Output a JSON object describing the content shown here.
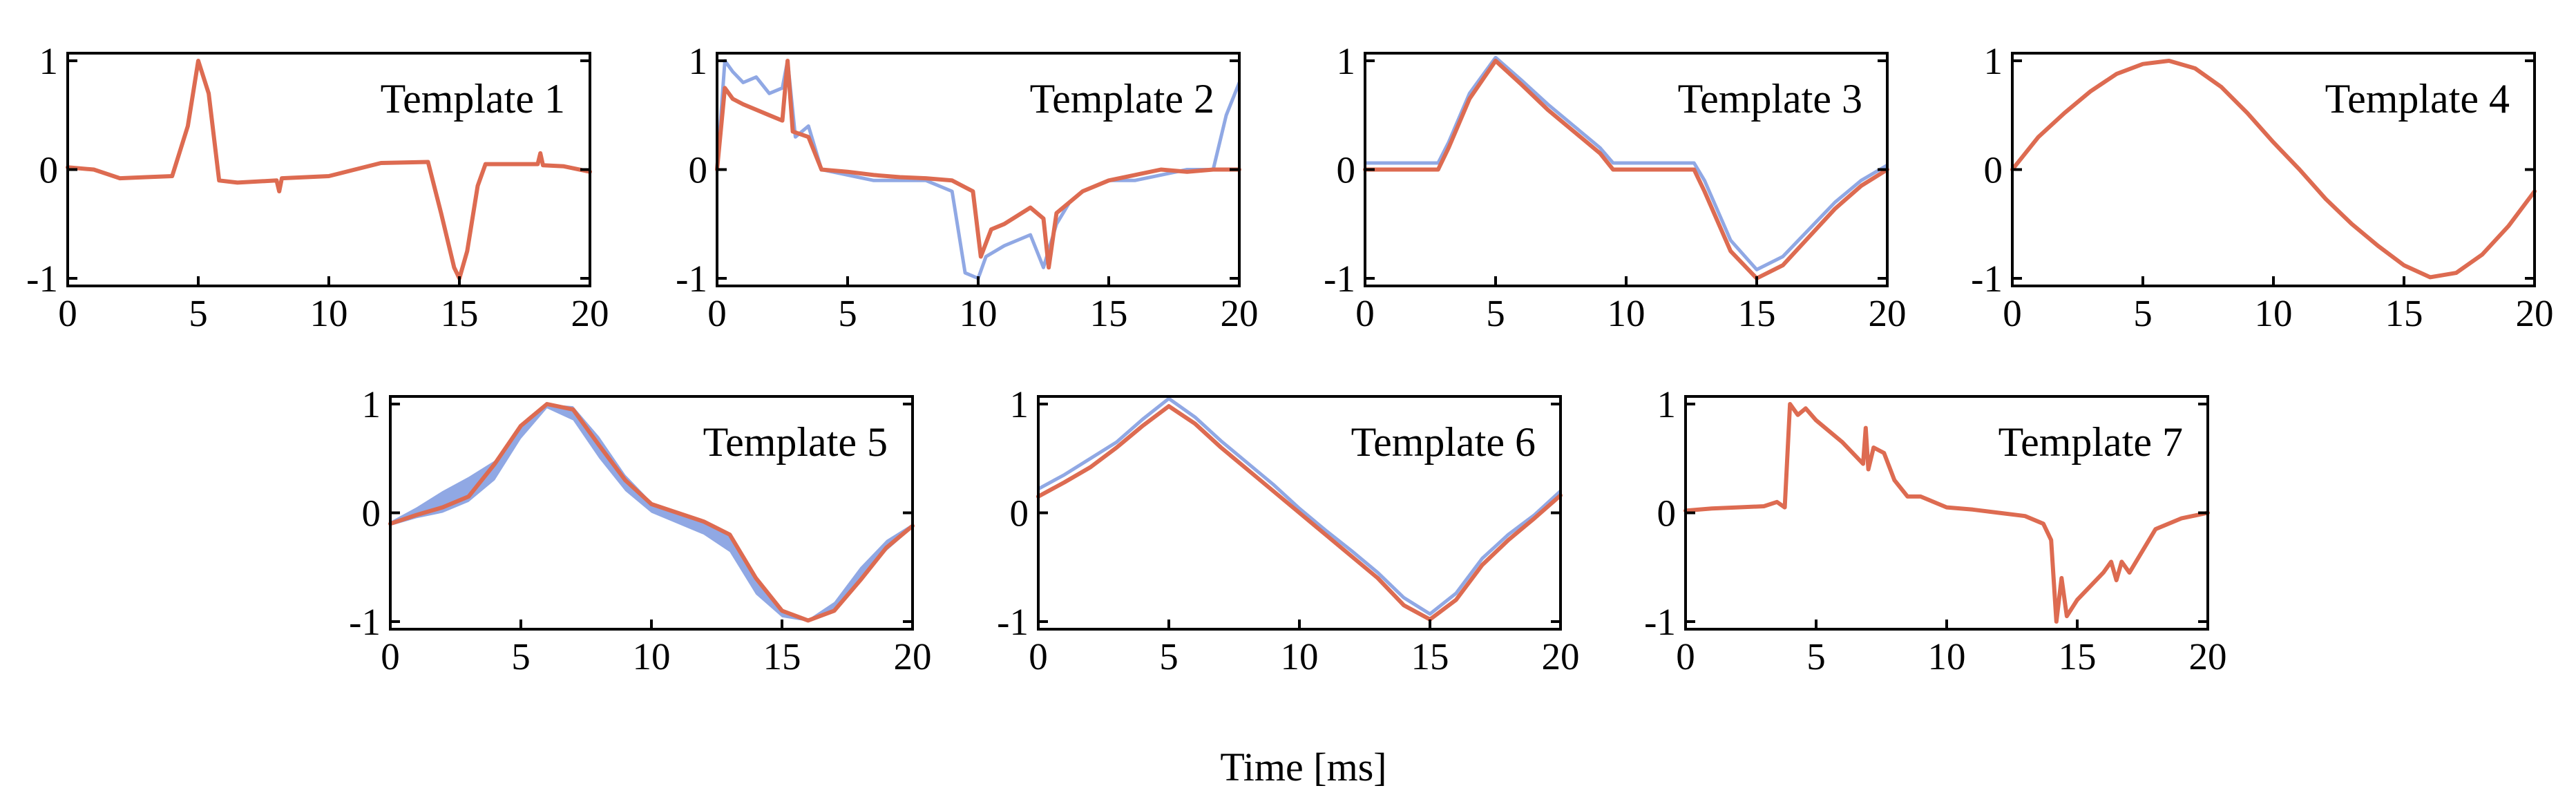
{
  "chart_data": [
    {
      "type": "line",
      "title": "Template 1",
      "xlim": [
        0,
        20
      ],
      "ylim": [
        -1,
        1
      ],
      "xticks": [
        0,
        5,
        10,
        15,
        20
      ],
      "yticks": [
        -1,
        0,
        1
      ],
      "series": [
        {
          "name": "template",
          "color": "#dd6b51",
          "x": [
            0,
            1,
            2,
            3,
            4,
            4.6,
            5.0,
            5.4,
            5.8,
            6.5,
            8,
            8.1,
            8.2,
            10,
            12,
            13.8,
            14.3,
            14.8,
            15.0,
            15.3,
            15.7,
            16,
            17,
            18,
            18.1,
            18.2,
            19,
            20
          ],
          "y": [
            0.02,
            0.0,
            -0.08,
            -0.07,
            -0.06,
            0.4,
            1.0,
            0.7,
            -0.1,
            -0.12,
            -0.1,
            -0.2,
            -0.08,
            -0.06,
            0.06,
            0.07,
            -0.4,
            -0.9,
            -1.0,
            -0.75,
            -0.15,
            0.05,
            0.05,
            0.05,
            0.15,
            0.04,
            0.03,
            -0.02
          ]
        }
      ]
    },
    {
      "type": "line",
      "title": "Template 2",
      "xlim": [
        0,
        20
      ],
      "ylim": [
        -1,
        1
      ],
      "xticks": [
        0,
        5,
        10,
        15,
        20
      ],
      "yticks": [
        -1,
        0,
        1
      ],
      "series": [
        {
          "name": "spread",
          "color": "#90a8e4",
          "x": [
            0,
            0.3,
            0.6,
            1.0,
            1.5,
            2.0,
            2.5,
            2.7,
            3.0,
            3.5,
            4.0,
            5,
            6,
            7,
            8,
            9,
            9.5,
            10.0,
            10.3,
            11,
            12,
            12.5,
            13,
            13.5,
            14,
            15,
            16,
            17,
            18,
            19,
            19.5,
            20
          ],
          "y": [
            0.0,
            1.0,
            0.9,
            0.8,
            0.85,
            0.7,
            0.75,
            1.0,
            0.3,
            0.4,
            0.0,
            -0.05,
            -0.1,
            -0.1,
            -0.1,
            -0.2,
            -0.95,
            -1.0,
            -0.8,
            -0.7,
            -0.6,
            -0.9,
            -0.5,
            -0.3,
            -0.2,
            -0.1,
            -0.1,
            -0.05,
            0.0,
            0.0,
            0.5,
            0.8
          ]
        },
        {
          "name": "template",
          "color": "#dd6b51",
          "x": [
            0,
            0.3,
            0.6,
            1.0,
            1.5,
            2.0,
            2.5,
            2.7,
            2.9,
            3.5,
            4.0,
            5,
            6,
            7,
            8,
            9,
            9.8,
            10.1,
            10.5,
            11,
            12,
            12.5,
            12.7,
            13,
            13.5,
            14,
            15,
            16,
            17,
            18,
            19,
            20
          ],
          "y": [
            0.0,
            0.75,
            0.65,
            0.6,
            0.55,
            0.5,
            0.45,
            1.0,
            0.35,
            0.3,
            0.0,
            -0.02,
            -0.05,
            -0.07,
            -0.08,
            -0.1,
            -0.2,
            -0.8,
            -0.55,
            -0.5,
            -0.35,
            -0.45,
            -0.9,
            -0.4,
            -0.3,
            -0.2,
            -0.1,
            -0.05,
            0.0,
            -0.02,
            0.0,
            0.0
          ]
        }
      ]
    },
    {
      "type": "line",
      "title": "Template 3",
      "xlim": [
        0,
        20
      ],
      "ylim": [
        -1,
        1
      ],
      "xticks": [
        0,
        5,
        10,
        15,
        20
      ],
      "yticks": [
        -1,
        0,
        1
      ],
      "series": [
        {
          "name": "spread",
          "color": "#90a8e4",
          "x": [
            0,
            1,
            2,
            2.8,
            3.2,
            4,
            5,
            6,
            7,
            8,
            9,
            9.5,
            10,
            11,
            12,
            12.6,
            13,
            14,
            15,
            16,
            17,
            18,
            19,
            20
          ],
          "y": [
            0.06,
            0.06,
            0.06,
            0.06,
            0.25,
            0.7,
            1.03,
            0.82,
            0.6,
            0.4,
            0.2,
            0.06,
            0.06,
            0.06,
            0.06,
            0.06,
            -0.1,
            -0.65,
            -0.92,
            -0.8,
            -0.55,
            -0.3,
            -0.1,
            0.04
          ]
        },
        {
          "name": "template",
          "color": "#dd6b51",
          "x": [
            0,
            1,
            2,
            2.8,
            3.2,
            4,
            5,
            6,
            7,
            8,
            9,
            9.5,
            10,
            11,
            12,
            12.6,
            13,
            14,
            15,
            16,
            17,
            18,
            19,
            20
          ],
          "y": [
            0.0,
            0.0,
            0.0,
            0.0,
            0.2,
            0.65,
            1.0,
            0.78,
            0.55,
            0.35,
            0.15,
            0.0,
            0.0,
            0.0,
            0.0,
            0.0,
            -0.2,
            -0.75,
            -1.0,
            -0.88,
            -0.62,
            -0.36,
            -0.15,
            0.0
          ]
        }
      ]
    },
    {
      "type": "line",
      "title": "Template 4",
      "xlim": [
        0,
        20
      ],
      "ylim": [
        -1,
        1
      ],
      "xticks": [
        0,
        5,
        10,
        15,
        20
      ],
      "yticks": [
        -1,
        0,
        1
      ],
      "series": [
        {
          "name": "template",
          "color": "#dd6b51",
          "x": [
            0,
            1,
            2,
            3,
            4,
            5,
            6,
            7,
            8,
            9,
            10,
            11,
            12,
            13,
            14,
            15,
            16,
            17,
            18,
            19,
            20
          ],
          "y": [
            0.0,
            0.3,
            0.52,
            0.72,
            0.88,
            0.97,
            1.0,
            0.93,
            0.76,
            0.52,
            0.25,
            0.0,
            -0.27,
            -0.5,
            -0.7,
            -0.88,
            -0.99,
            -0.95,
            -0.78,
            -0.52,
            -0.2
          ]
        }
      ]
    },
    {
      "type": "line",
      "title": "Template 5",
      "xlim": [
        0,
        20
      ],
      "ylim": [
        -1,
        1
      ],
      "xticks": [
        0,
        5,
        10,
        15,
        20
      ],
      "yticks": [
        -1,
        0,
        1
      ],
      "series": [
        {
          "name": "band-upper",
          "color": "#90a8e4",
          "x": [
            0,
            1,
            2,
            3,
            4,
            5,
            6,
            7,
            8,
            9,
            10,
            11,
            12,
            13,
            14,
            15,
            16,
            17,
            18,
            19,
            20
          ],
          "y": [
            -0.08,
            0.05,
            0.2,
            0.33,
            0.48,
            0.8,
            1.0,
            0.98,
            0.7,
            0.35,
            0.1,
            0.0,
            -0.08,
            -0.2,
            -0.6,
            -0.9,
            -0.98,
            -0.82,
            -0.5,
            -0.25,
            -0.1
          ]
        },
        {
          "name": "band-lower",
          "color": "#90a8e4",
          "x": [
            0,
            1,
            2,
            3,
            4,
            5,
            6,
            7,
            8,
            9,
            10,
            11,
            12,
            13,
            14,
            15,
            16,
            17,
            18,
            19,
            20
          ],
          "y": [
            -0.12,
            -0.05,
            0.0,
            0.1,
            0.3,
            0.68,
            0.96,
            0.85,
            0.5,
            0.2,
            0.0,
            -0.1,
            -0.2,
            -0.36,
            -0.75,
            -0.96,
            -1.0,
            -0.92,
            -0.62,
            -0.35,
            -0.14
          ]
        },
        {
          "name": "template",
          "color": "#dd6b51",
          "x": [
            0,
            1,
            2,
            3,
            4,
            5,
            6,
            7,
            8,
            9,
            10,
            11,
            12,
            13,
            14,
            15,
            16,
            17,
            18,
            19,
            20
          ],
          "y": [
            -0.1,
            -0.02,
            0.05,
            0.15,
            0.45,
            0.8,
            1.0,
            0.95,
            0.62,
            0.3,
            0.08,
            0.0,
            -0.08,
            -0.2,
            -0.6,
            -0.9,
            -0.99,
            -0.9,
            -0.62,
            -0.32,
            -0.12
          ]
        }
      ]
    },
    {
      "type": "line",
      "title": "Template 6",
      "xlim": [
        0,
        20
      ],
      "ylim": [
        -1,
        1
      ],
      "xticks": [
        0,
        5,
        10,
        15,
        20
      ],
      "yticks": [
        -1,
        0,
        1
      ],
      "series": [
        {
          "name": "spread",
          "color": "#90a8e4",
          "x": [
            0,
            1,
            2,
            3,
            4,
            5,
            6,
            7,
            8,
            9,
            10,
            11,
            12,
            13,
            14,
            15,
            16,
            17,
            18,
            19,
            20
          ],
          "y": [
            0.22,
            0.35,
            0.5,
            0.65,
            0.86,
            1.05,
            0.88,
            0.66,
            0.46,
            0.26,
            0.04,
            -0.16,
            -0.35,
            -0.55,
            -0.78,
            -0.93,
            -0.74,
            -0.42,
            -0.2,
            -0.02,
            0.2
          ]
        },
        {
          "name": "template",
          "color": "#dd6b51",
          "x": [
            0,
            1,
            2,
            3,
            4,
            5,
            6,
            7,
            8,
            9,
            10,
            11,
            12,
            13,
            14,
            15,
            16,
            17,
            18,
            19,
            20
          ],
          "y": [
            0.15,
            0.28,
            0.42,
            0.6,
            0.8,
            0.98,
            0.82,
            0.6,
            0.4,
            0.2,
            0.0,
            -0.2,
            -0.4,
            -0.6,
            -0.85,
            -0.98,
            -0.8,
            -0.48,
            -0.25,
            -0.05,
            0.16
          ]
        }
      ]
    },
    {
      "type": "line",
      "title": "Template 7",
      "xlim": [
        0,
        20
      ],
      "ylim": [
        -1,
        1
      ],
      "xticks": [
        0,
        5,
        10,
        15,
        20
      ],
      "yticks": [
        -1,
        0,
        1
      ],
      "series": [
        {
          "name": "template",
          "color": "#dd6b51",
          "x": [
            0,
            1,
            2,
            3,
            3.5,
            3.8,
            4.0,
            4.3,
            4.6,
            5,
            6,
            6.8,
            6.9,
            7.0,
            7.2,
            7.6,
            8,
            8.5,
            9,
            10,
            11,
            12,
            13,
            13.7,
            14.0,
            14.2,
            14.4,
            14.6,
            15,
            16,
            16.3,
            16.5,
            16.7,
            17,
            17.5,
            18,
            19,
            20
          ],
          "y": [
            0.02,
            0.04,
            0.05,
            0.06,
            0.1,
            0.05,
            1.0,
            0.9,
            0.96,
            0.85,
            0.65,
            0.45,
            0.78,
            0.4,
            0.6,
            0.55,
            0.3,
            0.15,
            0.15,
            0.05,
            0.03,
            0.0,
            -0.03,
            -0.1,
            -0.25,
            -1.0,
            -0.6,
            -0.95,
            -0.8,
            -0.55,
            -0.45,
            -0.62,
            -0.45,
            -0.55,
            -0.35,
            -0.15,
            -0.05,
            0.0
          ]
        }
      ]
    }
  ],
  "shared_xlabel": "Time [ms]"
}
